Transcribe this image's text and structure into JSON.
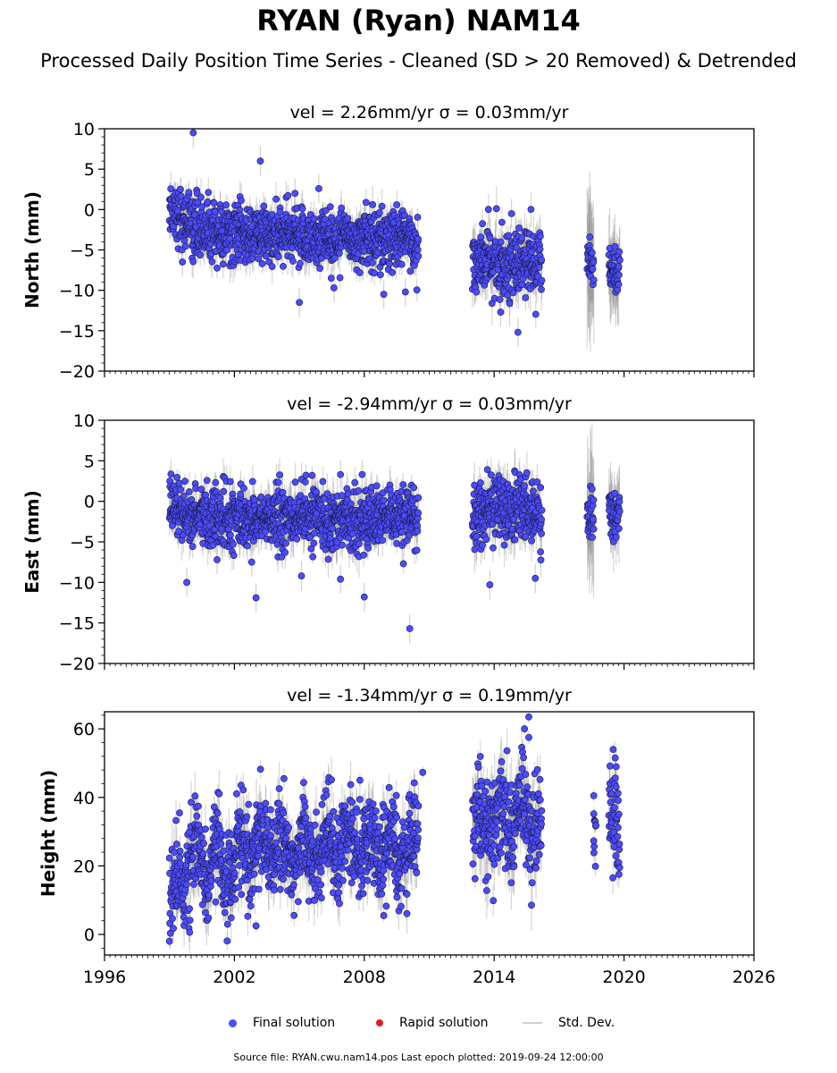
{
  "header": {
    "title": "RYAN (Ryan) NAM14",
    "subtitle": "Processed Daily Position Time Series - Cleaned (SD > 20 Removed) & Detrended"
  },
  "colors": {
    "final": "#4b4bff",
    "final_edge": "#1a1a40",
    "rapid": "#e31a1c",
    "stddev": "#8c8c8c"
  },
  "legend": {
    "final": "Final solution",
    "rapid": "Rapid solution",
    "stddev": "Std. Dev."
  },
  "footer": "Source file: RYAN.cwu.nam14.pos  Last epoch plotted: 2019-09-24 12:00:00",
  "chart_data": [
    {
      "type": "scatter",
      "title": "vel = 2.26mm/yr   σ = 0.03mm/yr",
      "ylabel": "North (mm)",
      "xlabel": "",
      "xlim": [
        1996,
        2026
      ],
      "ylim": [
        -20,
        10
      ],
      "yticks": [
        -20,
        -15,
        -10,
        -5,
        0,
        5,
        10
      ],
      "ytick_labels": [
        "−20",
        "−15",
        "−10",
        "−5",
        "0",
        "5",
        "10"
      ],
      "xticks": [
        1996,
        2002,
        2008,
        2014,
        2020,
        2026
      ],
      "xtick_labels": [],
      "segments": [
        {
          "x": [
            1999.0,
            2000.0,
            2001.0,
            2002.0,
            2003.0,
            2004.0,
            2005.0,
            2006.0,
            2007.0,
            2008.0,
            2009.0,
            2010.0,
            2010.5
          ],
          "y": [
            0.5,
            -2.0,
            -2.8,
            -3.2,
            -3.3,
            -3.2,
            -3.4,
            -3.5,
            -3.5,
            -3.4,
            -3.6,
            -3.8,
            -4.0
          ],
          "spread": 2.0,
          "sd": 1.8
        },
        {
          "x": [
            2013.0,
            2014.0,
            2015.0,
            2016.2
          ],
          "y": [
            -6.2,
            -6.5,
            -6.6,
            -6.8
          ],
          "spread": 2.2,
          "sd": 2.2
        },
        {
          "x": [
            2018.3,
            2018.6
          ],
          "y": [
            -6.0,
            -6.3
          ],
          "spread": 1.8,
          "sd": 8.0
        },
        {
          "x": [
            2019.3,
            2019.8
          ],
          "y": [
            -7.0,
            -8.0
          ],
          "spread": 2.0,
          "sd": 4.0
        }
      ],
      "outliers": [
        {
          "x": 2000.1,
          "y": 9.5
        },
        {
          "x": 2003.2,
          "y": 6.0
        },
        {
          "x": 2005.0,
          "y": -11.5
        },
        {
          "x": 2015.1,
          "y": -15.2
        },
        {
          "x": 2008.9,
          "y": -10.5
        },
        {
          "x": 2014.3,
          "y": -12.7
        },
        {
          "x": 2009.9,
          "y": -10.2
        },
        {
          "x": 2006.6,
          "y": -9.7
        },
        {
          "x": 1999.6,
          "y": -6.5
        },
        {
          "x": 2014.8,
          "y": -0.5
        },
        {
          "x": 2005.9,
          "y": 2.6
        },
        {
          "x": 2004.8,
          "y": 2.0
        }
      ]
    },
    {
      "type": "scatter",
      "title": "vel = -2.94mm/yr   σ = 0.03mm/yr",
      "ylabel": "East (mm)",
      "xlabel": "",
      "xlim": [
        1996,
        2026
      ],
      "ylim": [
        -20,
        10
      ],
      "yticks": [
        -20,
        -15,
        -10,
        -5,
        0,
        5,
        10
      ],
      "ytick_labels": [
        "−20",
        "−15",
        "−10",
        "−5",
        "0",
        "5",
        "10"
      ],
      "xticks": [
        1996,
        2002,
        2008,
        2014,
        2020,
        2026
      ],
      "xtick_labels": [],
      "segments": [
        {
          "x": [
            1999.0,
            2001.0,
            2003.0,
            2005.0,
            2007.0,
            2009.0,
            2010.5
          ],
          "y": [
            -1.5,
            -2.0,
            -2.2,
            -2.0,
            -2.1,
            -2.3,
            -2.0
          ],
          "spread": 2.0,
          "sd": 2.0
        },
        {
          "x": [
            2013.0,
            2014.0,
            2015.0,
            2016.2
          ],
          "y": [
            -1.5,
            -0.8,
            -1.0,
            -1.5
          ],
          "spread": 2.3,
          "sd": 2.3
        },
        {
          "x": [
            2018.3,
            2018.6
          ],
          "y": [
            -1.5,
            -2.0
          ],
          "spread": 2.0,
          "sd": 7.0
        },
        {
          "x": [
            2019.3,
            2019.8
          ],
          "y": [
            -1.0,
            -1.5
          ],
          "spread": 2.0,
          "sd": 3.5
        }
      ],
      "outliers": [
        {
          "x": 2010.1,
          "y": -15.7
        },
        {
          "x": 2003.0,
          "y": -11.9
        },
        {
          "x": 2008.0,
          "y": -11.8
        },
        {
          "x": 2013.8,
          "y": -10.3
        },
        {
          "x": 1999.8,
          "y": -10.0
        },
        {
          "x": 2006.9,
          "y": -9.6
        },
        {
          "x": 2005.1,
          "y": -9.2
        },
        {
          "x": 2015.9,
          "y": -9.5
        },
        {
          "x": 2006.9,
          "y": 3.3
        },
        {
          "x": 2007.9,
          "y": 3.3
        },
        {
          "x": 2002.8,
          "y": -7.5
        },
        {
          "x": 2001.2,
          "y": -7.2
        }
      ]
    },
    {
      "type": "scatter",
      "title": "vel = -1.34mm/yr   σ = 0.19mm/yr",
      "ylabel": "Height (mm)",
      "xlabel": "",
      "xlim": [
        1996,
        2026
      ],
      "ylim": [
        -6,
        65
      ],
      "yticks": [
        0,
        20,
        40,
        60
      ],
      "ytick_labels": [
        "0",
        "20",
        "40",
        "60"
      ],
      "xticks": [
        1996,
        2002,
        2008,
        2014,
        2020,
        2026
      ],
      "xtick_labels": [
        "1996",
        "2002",
        "2008",
        "2014",
        "2020",
        "2026"
      ],
      "segments": [
        {
          "x": [
            1999.0,
            1999.5,
            2000.5,
            2001.5,
            2002.5,
            2003.5,
            2004.5,
            2005.5,
            2006.5,
            2007.5,
            2008.5,
            2009.5,
            2010.5
          ],
          "y": [
            8.0,
            18.0,
            21.0,
            20.0,
            24.0,
            27.0,
            25.0,
            24.0,
            27.0,
            26.0,
            25.0,
            24.0,
            27.0
          ],
          "spread": 7.0,
          "sd": 6.0
        },
        {
          "x": [
            2013.0,
            2014.0,
            2015.0,
            2016.2
          ],
          "y": [
            30.0,
            33.0,
            35.0,
            32.0
          ],
          "spread": 8.0,
          "sd": 7.0
        },
        {
          "x": [
            2018.6,
            2018.7
          ],
          "y": [
            32.0,
            34.0
          ],
          "spread": 5.0,
          "sd": 3.0
        },
        {
          "x": [
            2019.3,
            2019.8
          ],
          "y": [
            34.0,
            37.0
          ],
          "spread": 8.0,
          "sd": 6.0
        }
      ],
      "outliers": [
        {
          "x": 2015.6,
          "y": 63.5
        },
        {
          "x": 2015.4,
          "y": 60.0
        },
        {
          "x": 2015.6,
          "y": 57.5
        },
        {
          "x": 2005.2,
          "y": 44.3
        },
        {
          "x": 2007.8,
          "y": 45.0
        },
        {
          "x": 2010.7,
          "y": 47.3
        },
        {
          "x": 1999.0,
          "y": -2.0
        },
        {
          "x": 2003.0,
          "y": 2.5
        },
        {
          "x": 2008.9,
          "y": 5.5
        },
        {
          "x": 2018.6,
          "y": 40.5
        },
        {
          "x": 2018.6,
          "y": 27.3
        },
        {
          "x": 2019.5,
          "y": 54.0
        }
      ]
    }
  ]
}
